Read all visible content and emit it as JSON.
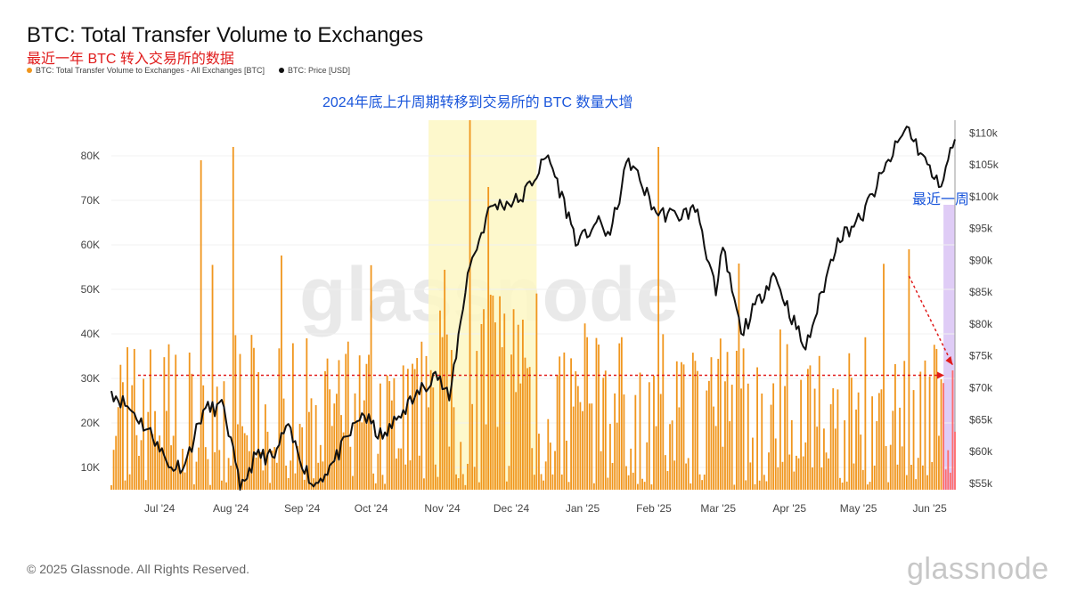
{
  "header": {
    "title": "BTC: Total Transfer Volume to Exchanges",
    "subtitle": "最近一年 BTC 转入交易所的数据"
  },
  "legend": [
    {
      "label": "BTC: Total Transfer Volume to Exchanges - All Exchanges [BTC]",
      "color": "#f0961e"
    },
    {
      "label": "BTC: Price [USD]",
      "color": "#111111"
    }
  ],
  "annotations": {
    "highlight_note": "2024年底上升周期转移到交易所的 BTC 数量大增",
    "recent_week": "最近一周"
  },
  "footer": {
    "copyright": "© 2025 Glassnode. All Rights Reserved.",
    "brand": "glassnode",
    "watermark": "glassnode"
  },
  "colors": {
    "bars": "#f0961e",
    "price_line": "#111111",
    "highlight_yellow": "#fdf7c3",
    "highlight_purple": "#d9c3f4",
    "reference_line": "#e01b1b",
    "annotation_text": "#1a56db"
  },
  "chart_data": {
    "type": "bar",
    "left_axis": {
      "ticks": [
        "10K",
        "20K",
        "30K",
        "40K",
        "50K",
        "60K",
        "70K",
        "80K"
      ],
      "range": [
        5000,
        88000
      ]
    },
    "right_axis": {
      "ticks": [
        "$55k",
        "$60k",
        "$65k",
        "$70k",
        "$75k",
        "$80k",
        "$85k",
        "$90k",
        "$95k",
        "$100k",
        "$105k",
        "$110k"
      ],
      "range": [
        54000,
        112000
      ]
    },
    "x_ticks": [
      "Jul '24",
      "Aug '24",
      "Sep '24",
      "Oct '24",
      "Nov '24",
      "Dec '24",
      "Jan '25",
      "Feb '25",
      "Mar '25",
      "Apr '25",
      "May '25",
      "Jun '25"
    ],
    "x_domain": [
      "2024-06-10",
      "2025-06-12"
    ],
    "reference_level": 30700,
    "highlight_periods": [
      {
        "from": "2024-10-26",
        "to": "2024-12-12",
        "color": "yellow"
      },
      {
        "from": "2025-06-07",
        "to": "2025-06-12",
        "color": "purple"
      }
    ],
    "price_points": [
      {
        "date": "2024-06-10",
        "value": 69500
      },
      {
        "date": "2024-06-20",
        "value": 66000
      },
      {
        "date": "2024-06-30",
        "value": 61500
      },
      {
        "date": "2024-07-05",
        "value": 57500
      },
      {
        "date": "2024-07-12",
        "value": 58000
      },
      {
        "date": "2024-07-20",
        "value": 66500
      },
      {
        "date": "2024-07-29",
        "value": 67000
      },
      {
        "date": "2024-08-05",
        "value": 54000
      },
      {
        "date": "2024-08-12",
        "value": 59500
      },
      {
        "date": "2024-08-20",
        "value": 59000
      },
      {
        "date": "2024-08-25",
        "value": 64000
      },
      {
        "date": "2024-09-06",
        "value": 54500
      },
      {
        "date": "2024-09-15",
        "value": 58500
      },
      {
        "date": "2024-09-27",
        "value": 66000
      },
      {
        "date": "2024-10-06",
        "value": 62000
      },
      {
        "date": "2024-10-15",
        "value": 66500
      },
      {
        "date": "2024-10-20",
        "value": 68500
      },
      {
        "date": "2024-10-29",
        "value": 72500
      },
      {
        "date": "2024-11-04",
        "value": 68000
      },
      {
        "date": "2024-11-12",
        "value": 88000
      },
      {
        "date": "2024-11-22",
        "value": 98500
      },
      {
        "date": "2024-12-05",
        "value": 99500
      },
      {
        "date": "2024-12-17",
        "value": 106500
      },
      {
        "date": "2024-12-30",
        "value": 92500
      },
      {
        "date": "2025-01-07",
        "value": 96000
      },
      {
        "date": "2025-01-13",
        "value": 94000
      },
      {
        "date": "2025-01-21",
        "value": 106000
      },
      {
        "date": "2025-02-02",
        "value": 97500
      },
      {
        "date": "2025-02-11",
        "value": 97000
      },
      {
        "date": "2025-02-20",
        "value": 98000
      },
      {
        "date": "2025-02-28",
        "value": 84500
      },
      {
        "date": "2025-03-03",
        "value": 92000
      },
      {
        "date": "2025-03-11",
        "value": 78500
      },
      {
        "date": "2025-03-25",
        "value": 88000
      },
      {
        "date": "2025-04-08",
        "value": 76000
      },
      {
        "date": "2025-04-22",
        "value": 93500
      },
      {
        "date": "2025-05-02",
        "value": 96500
      },
      {
        "date": "2025-05-12",
        "value": 104000
      },
      {
        "date": "2025-05-22",
        "value": 111000
      },
      {
        "date": "2025-06-05",
        "value": 101500
      },
      {
        "date": "2025-06-12",
        "value": 109000
      }
    ],
    "volume_series": {
      "name": "BTC: Total Transfer Volume to Exchanges - All Exchanges [BTC]",
      "interval": "daily",
      "notable_points": [
        {
          "date": "2024-07-19",
          "value": 79000
        },
        {
          "date": "2024-08-02",
          "value": 82000
        },
        {
          "date": "2024-11-13",
          "value": 88000
        },
        {
          "date": "2024-11-21",
          "value": 73000
        },
        {
          "date": "2025-02-03",
          "value": 82000
        },
        {
          "date": "2025-05-23",
          "value": 59000
        },
        {
          "date": "2025-06-11",
          "value": 31800
        }
      ],
      "typical_range": [
        10000,
        40000
      ]
    }
  }
}
